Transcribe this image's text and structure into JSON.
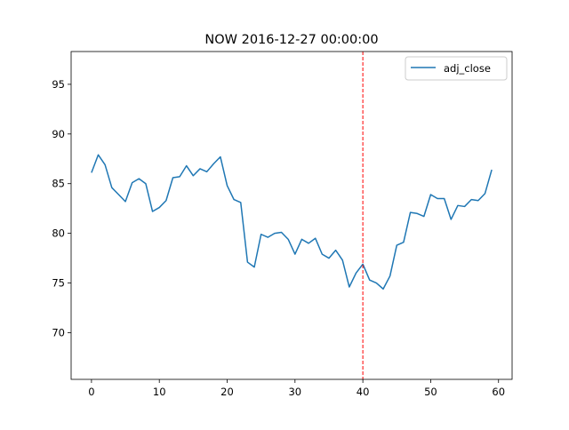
{
  "chart_data": {
    "type": "line",
    "title": "NOW 2016-12-27 00:00:00",
    "xlabel": "",
    "ylabel": "",
    "xlim": [
      -3,
      62
    ],
    "ylim": [
      65.3,
      98.3
    ],
    "xticks": [
      0,
      10,
      20,
      30,
      40,
      50,
      60
    ],
    "yticks": [
      70,
      75,
      80,
      85,
      90,
      95
    ],
    "grid": false,
    "legend": {
      "position": "top-right"
    },
    "series": [
      {
        "name": "adj_close",
        "color": "#1f77b4",
        "x": [
          0,
          1,
          2,
          3,
          4,
          5,
          6,
          7,
          8,
          9,
          10,
          11,
          12,
          13,
          14,
          15,
          16,
          17,
          18,
          19,
          20,
          21,
          22,
          23,
          24,
          25,
          26,
          27,
          28,
          29,
          30,
          31,
          32,
          33,
          34,
          35,
          36,
          37,
          38,
          39,
          40,
          41,
          42,
          43,
          44,
          45,
          46,
          47,
          48,
          49,
          50,
          51,
          52,
          53,
          54,
          55,
          56,
          57,
          58,
          59
        ],
        "values": [
          86.1,
          87.9,
          86.9,
          84.6,
          83.9,
          83.2,
          85.1,
          85.5,
          85.0,
          82.2,
          82.6,
          83.3,
          85.6,
          85.7,
          86.8,
          85.8,
          86.5,
          86.2,
          87.0,
          87.7,
          84.8,
          83.4,
          83.1,
          77.1,
          76.6,
          79.9,
          79.6,
          80.0,
          80.1,
          79.4,
          77.9,
          79.4,
          79.0,
          79.5,
          77.9,
          77.5,
          78.3,
          77.3,
          74.6,
          76.0,
          76.9,
          75.3,
          75.0,
          74.4,
          75.7,
          78.8,
          79.1,
          82.1,
          82.0,
          81.7,
          83.9,
          83.5,
          83.5,
          81.4,
          82.8,
          82.7,
          83.4,
          83.3,
          84.0,
          86.4
        ]
      }
    ],
    "vline": {
      "x": 40,
      "color": "#ff0000",
      "style": "dashed"
    }
  }
}
